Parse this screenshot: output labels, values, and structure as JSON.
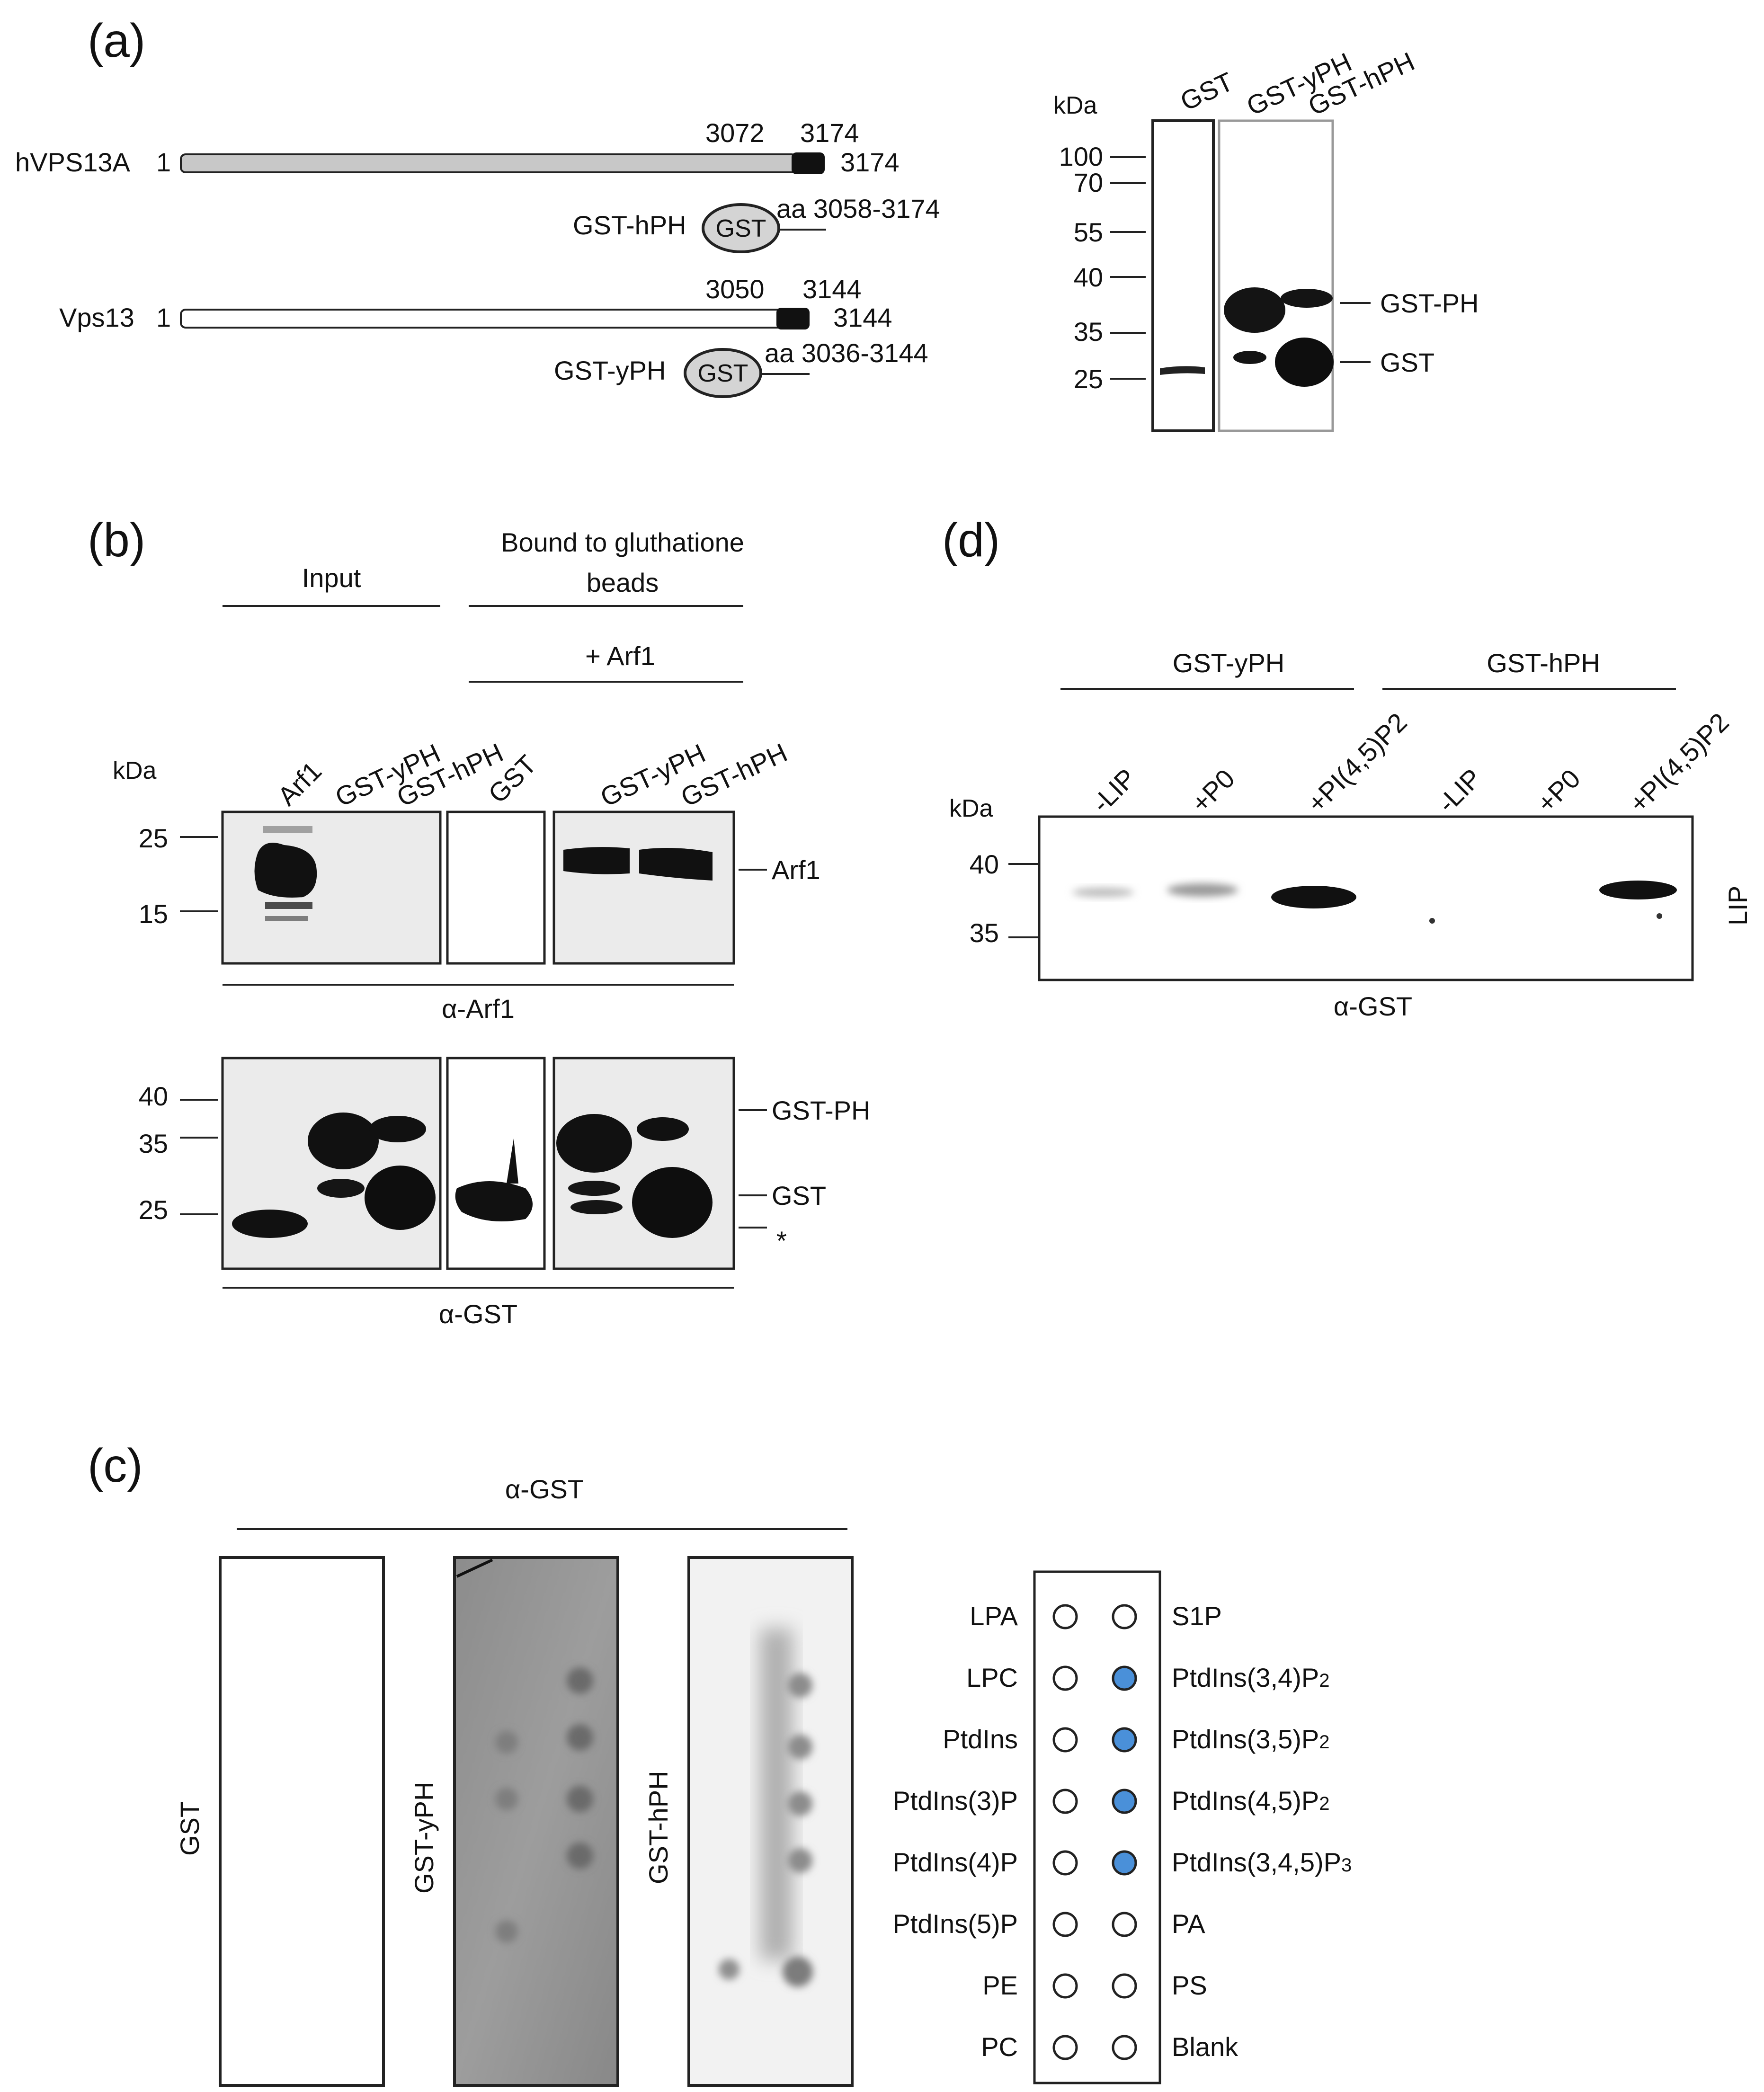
{
  "panels": {
    "a": "(a)",
    "b": "(b)",
    "c": "(c)",
    "d": "(d)"
  },
  "a": {
    "human": {
      "name": "hVPS13A",
      "start": "1",
      "ph_start": "3072",
      "ph_end": "3174",
      "end": "3174"
    },
    "human_construct": {
      "name": "GST-hPH",
      "tag": "GST",
      "range": "aa 3058-3174"
    },
    "yeast": {
      "name": "Vps13",
      "start": "1",
      "ph_start": "3050",
      "ph_end": "3144",
      "end": "3144"
    },
    "yeast_construct": {
      "name": "GST-yPH",
      "tag": "GST",
      "range": "aa 3036-3144"
    },
    "blot": {
      "kda": "kDa",
      "lanes": [
        "GST",
        "GST-yPH",
        "GST-hPH"
      ],
      "markers": [
        "100",
        "70",
        "55",
        "40",
        "35",
        "25"
      ],
      "bands": [
        "GST-PH",
        "GST"
      ]
    }
  },
  "b": {
    "input": "Input",
    "bound": [
      "Bound to gluthatione",
      "beads"
    ],
    "arf1_added": "+ Arf1",
    "kda": "kDa",
    "lanes": [
      "Arf1",
      "GST-yPH",
      "GST-hPH",
      "GST",
      "GST-yPH",
      "GST-hPH"
    ],
    "top_markers": [
      "25",
      "15"
    ],
    "top_band": "Arf1",
    "top_antibody": "α-Arf1",
    "bottom_markers": [
      "40",
      "35",
      "25"
    ],
    "bottom_bands": [
      "GST-PH",
      "GST",
      "*"
    ],
    "bottom_antibody": "α-GST"
  },
  "c": {
    "antibody": "α-GST",
    "strips": [
      "GST",
      "GST-yPH",
      "GST-hPH"
    ],
    "left_lipids": [
      "LPA",
      "LPC",
      "PtdIns",
      "PtdIns(3)P",
      "PtdIns(4)P",
      "PtdIns(5)P",
      "PE",
      "PC"
    ],
    "right_lipids": [
      {
        "name": "S1P",
        "sub": "",
        "bound": false
      },
      {
        "name": "PtdIns(3,4)P",
        "sub": "2",
        "bound": true
      },
      {
        "name": "PtdIns(3,5)P",
        "sub": "2",
        "bound": true
      },
      {
        "name": "PtdIns(4,5)P",
        "sub": "2",
        "bound": true
      },
      {
        "name": "PtdIns(3,4,5)P",
        "sub": "3",
        "bound": true
      },
      {
        "name": "PA",
        "sub": "",
        "bound": false
      },
      {
        "name": "PS",
        "sub": "",
        "bound": false
      },
      {
        "name": "Blank",
        "sub": "",
        "bound": false
      }
    ],
    "bound_color": "#4a90d9"
  },
  "d": {
    "groups": [
      "GST-yPH",
      "GST-hPH"
    ],
    "lanes": [
      "-LIP",
      "+P0",
      "+PI(4,5)P2",
      "-LIP",
      "+P0",
      "+PI(4,5)P2"
    ],
    "kda": "kDa",
    "markers": [
      "40",
      "35"
    ],
    "side": "LIP",
    "antibody": "α-GST"
  }
}
